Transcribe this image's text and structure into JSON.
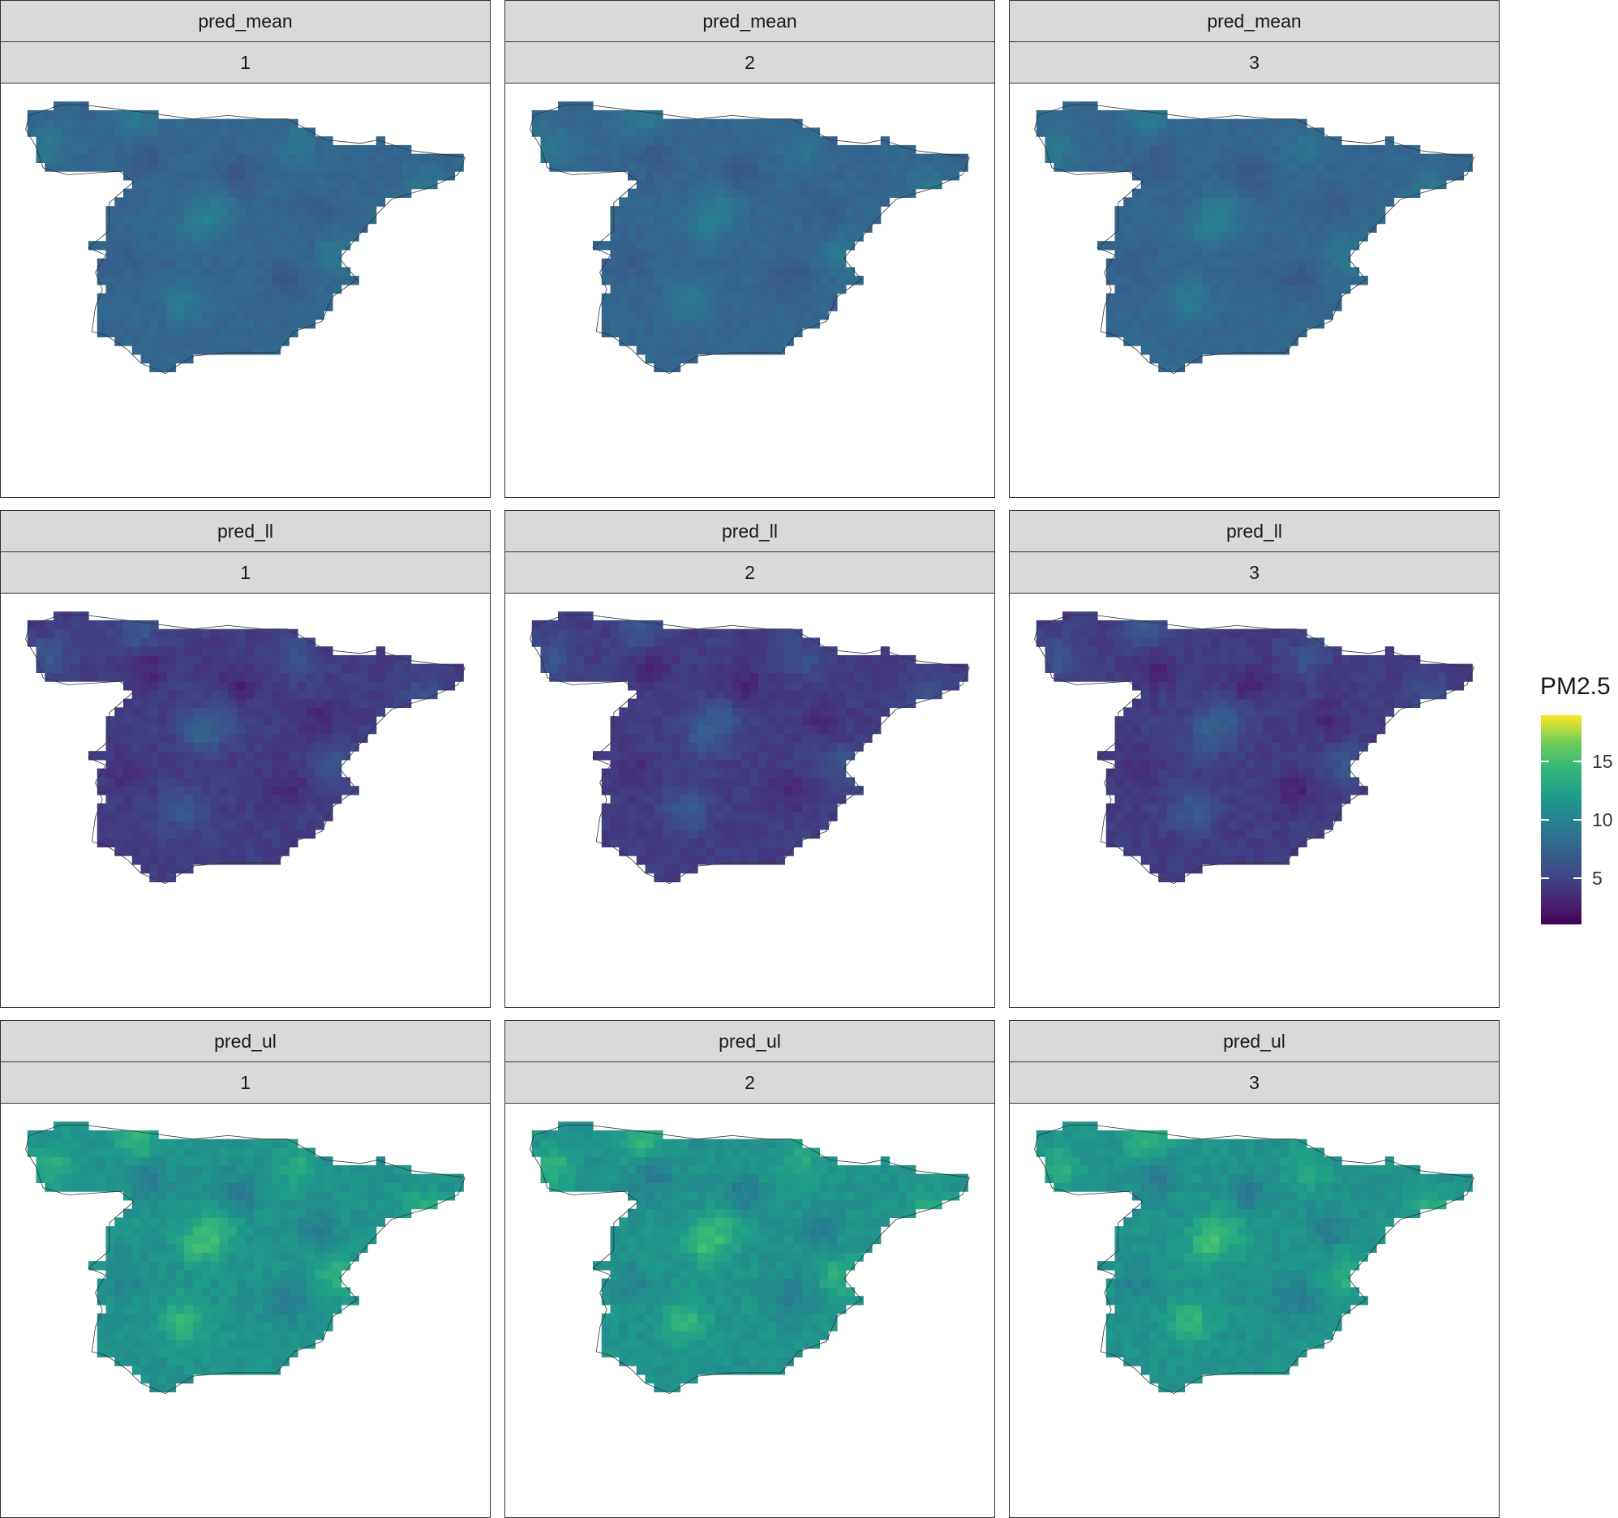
{
  "legend": {
    "title": "PM2.5",
    "scale": "viridis",
    "range": [
      1,
      19
    ],
    "ticks": [
      {
        "value": 5,
        "label": "5"
      },
      {
        "value": 10,
        "label": "10"
      },
      {
        "value": 15,
        "label": "15"
      }
    ],
    "colors": [
      "#440154",
      "#482878",
      "#3e4a89",
      "#31688e",
      "#26828e",
      "#1f9e89",
      "#35b779",
      "#6ece58",
      "#fde725"
    ]
  },
  "variables": [
    {
      "name": "pred_mean",
      "base": 7.6,
      "spread": 1.6
    },
    {
      "name": "pred_ll",
      "base": 4.6,
      "spread": 2.0
    },
    {
      "name": "pred_ul",
      "base": 11.4,
      "spread": 2.6
    }
  ],
  "scenarios": [
    "1",
    "2",
    "3"
  ],
  "map": {
    "region": "Spain (mainland)",
    "hotspots": [
      {
        "lon": -6.1,
        "lat": 43.4,
        "amp": 1.0
      },
      {
        "lon": -4.3,
        "lat": 40.4,
        "amp": 1.2
      },
      {
        "lon": -3.7,
        "lat": 40.9,
        "amp": 0.8
      },
      {
        "lon": -4.8,
        "lat": 38.2,
        "amp": 1.1
      },
      {
        "lon": -0.4,
        "lat": 39.5,
        "amp": 0.9
      },
      {
        "lon": -1.5,
        "lat": 42.6,
        "amp": 0.7
      },
      {
        "lon": 2.1,
        "lat": 41.4,
        "amp": 0.8
      },
      {
        "lon": -8.6,
        "lat": 42.6,
        "amp": 0.9
      }
    ],
    "coldspots": [
      {
        "lon": -3.2,
        "lat": 41.8,
        "amp": 1.0
      },
      {
        "lon": -5.8,
        "lat": 42.3,
        "amp": 0.9
      },
      {
        "lon": -1.8,
        "lat": 38.8,
        "amp": 0.9
      },
      {
        "lon": -6.4,
        "lat": 39.3,
        "amp": 0.6
      },
      {
        "lon": -0.9,
        "lat": 40.8,
        "amp": 0.7
      }
    ]
  }
}
